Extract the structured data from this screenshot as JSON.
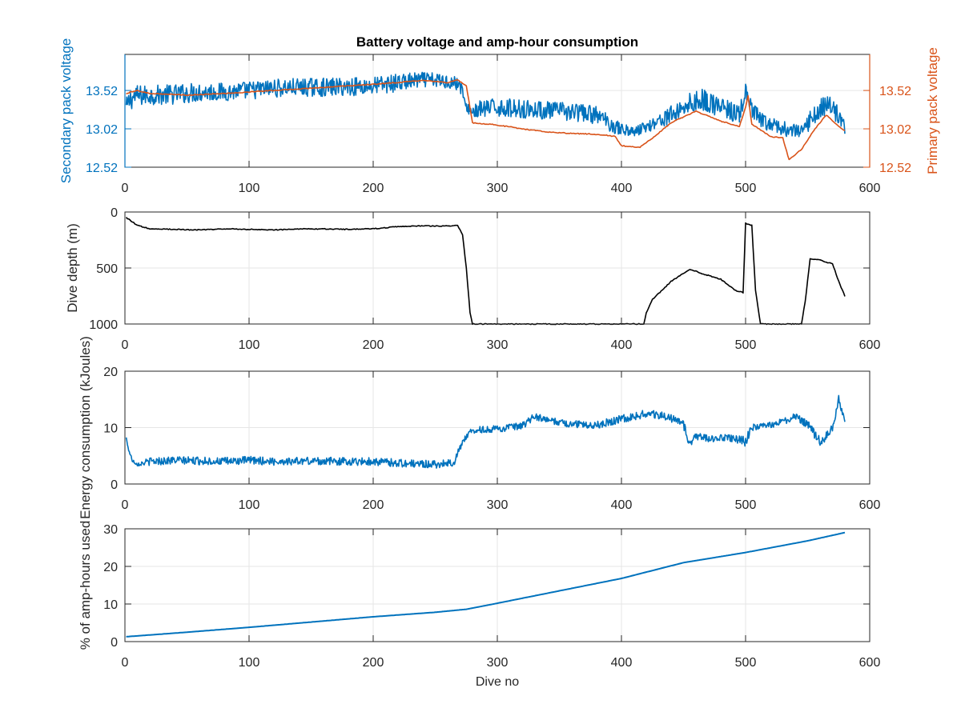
{
  "figure": {
    "title": "Battery voltage and amp-hour consumption",
    "colors": {
      "blue": "#0072bd",
      "orange": "#d95319",
      "black": "#000000",
      "grid": "#e6e6e6",
      "axis": "#262626"
    }
  },
  "chart_data": [
    {
      "type": "line",
      "title": "Battery voltage and amp-hour consumption",
      "xlabel": "",
      "ylabel": "Secondary pack voltage",
      "ylabel_right": "Primary pack voltage",
      "xlim": [
        0,
        600
      ],
      "ylim": [
        12.52,
        13.99
      ],
      "ylim_right": [
        12.52,
        13.99
      ],
      "xticks": [
        0,
        100,
        200,
        300,
        400,
        500,
        600
      ],
      "yticks": [
        12.52,
        13.02,
        13.52
      ],
      "yticks_right": [
        12.52,
        13.02,
        13.52
      ],
      "grid": true,
      "series": [
        {
          "axis": "left",
          "color": "#0072bd",
          "style": "noisy",
          "x": [
            1,
            5,
            10,
            20,
            40,
            60,
            80,
            100,
            120,
            140,
            160,
            180,
            200,
            220,
            240,
            260,
            270,
            275,
            280,
            290,
            300,
            320,
            340,
            360,
            380,
            395,
            400,
            410,
            420,
            440,
            455,
            465,
            480,
            495,
            500,
            505,
            515,
            530,
            545,
            555,
            565,
            575,
            580
          ],
          "y": [
            13.3,
            13.42,
            13.45,
            13.46,
            13.47,
            13.5,
            13.5,
            13.52,
            13.55,
            13.56,
            13.56,
            13.57,
            13.58,
            13.62,
            13.66,
            13.64,
            13.6,
            13.3,
            13.25,
            13.28,
            13.3,
            13.28,
            13.26,
            13.24,
            13.2,
            13.05,
            13.02,
            12.98,
            13.05,
            13.2,
            13.35,
            13.4,
            13.3,
            13.2,
            13.5,
            13.25,
            13.1,
            13.02,
            12.98,
            13.2,
            13.35,
            13.2,
            13.05
          ],
          "noise": [
            0.12,
            0.15,
            0.14,
            0.13,
            0.13,
            0.13,
            0.12,
            0.12,
            0.12,
            0.12,
            0.12,
            0.12,
            0.12,
            0.12,
            0.1,
            0.1,
            0.1,
            0.05,
            0.12,
            0.12,
            0.12,
            0.12,
            0.12,
            0.12,
            0.12,
            0.1,
            0.08,
            0.06,
            0.08,
            0.12,
            0.14,
            0.14,
            0.14,
            0.12,
            0.12,
            0.12,
            0.1,
            0.1,
            0.08,
            0.15,
            0.15,
            0.12,
            0.1
          ]
        },
        {
          "axis": "right",
          "color": "#d95319",
          "style": "smooth",
          "x": [
            1,
            5,
            10,
            20,
            50,
            80,
            100,
            150,
            200,
            240,
            260,
            268,
            275,
            280,
            300,
            320,
            340,
            360,
            380,
            395,
            400,
            415,
            425,
            440,
            460,
            480,
            495,
            500,
            502,
            505,
            520,
            530,
            535,
            545,
            555,
            565,
            575,
            580
          ],
          "y": [
            13.48,
            13.5,
            13.52,
            13.48,
            13.46,
            13.48,
            13.5,
            13.55,
            13.6,
            13.65,
            13.62,
            13.66,
            13.58,
            13.1,
            13.07,
            13.02,
            12.98,
            12.96,
            12.95,
            12.92,
            12.8,
            12.78,
            12.9,
            13.1,
            13.25,
            13.12,
            13.05,
            13.3,
            13.45,
            13.08,
            12.92,
            12.9,
            12.62,
            12.75,
            13.0,
            13.2,
            13.05,
            13.0
          ]
        }
      ]
    },
    {
      "type": "line",
      "xlabel": "",
      "ylabel": "Dive depth (m)",
      "xlim": [
        0,
        600
      ],
      "ylim": [
        0,
        1000
      ],
      "y_reversed": true,
      "xticks": [
        0,
        100,
        200,
        300,
        400,
        500,
        600
      ],
      "yticks": [
        0,
        500,
        1000
      ],
      "grid": true,
      "series": [
        {
          "color": "#000000",
          "style": "smooth",
          "x": [
            1,
            5,
            10,
            20,
            40,
            60,
            80,
            100,
            120,
            150,
            180,
            200,
            220,
            240,
            260,
            268,
            272,
            275,
            278,
            280,
            300,
            350,
            380,
            400,
            410,
            418,
            420,
            425,
            440,
            455,
            465,
            480,
            492,
            498,
            500,
            502,
            505,
            508,
            512,
            515,
            530,
            545,
            548,
            552,
            560,
            565,
            570,
            575,
            580
          ],
          "y": [
            50,
            80,
            120,
            150,
            155,
            160,
            150,
            155,
            160,
            150,
            155,
            150,
            130,
            125,
            125,
            120,
            200,
            500,
            900,
            1000,
            1000,
            1000,
            1000,
            1000,
            1000,
            1000,
            900,
            780,
            620,
            510,
            550,
            600,
            700,
            720,
            100,
            110,
            120,
            700,
            1000,
            1000,
            1000,
            1000,
            800,
            420,
            430,
            450,
            460,
            620,
            750
          ]
        }
      ]
    },
    {
      "type": "line",
      "xlabel": "",
      "ylabel": "Energy consumption (kJoules)",
      "xlim": [
        0,
        600
      ],
      "ylim": [
        0,
        20
      ],
      "xticks": [
        0,
        100,
        200,
        300,
        400,
        500,
        600
      ],
      "yticks": [
        0,
        10,
        20
      ],
      "grid": true,
      "series": [
        {
          "color": "#0072bd",
          "style": "noisy",
          "x": [
            1,
            3,
            6,
            10,
            20,
            40,
            60,
            80,
            100,
            120,
            150,
            180,
            200,
            230,
            250,
            265,
            270,
            275,
            280,
            300,
            320,
            330,
            340,
            360,
            380,
            400,
            420,
            440,
            450,
            455,
            460,
            470,
            480,
            490,
            500,
            505,
            520,
            530,
            540,
            550,
            560,
            565,
            570,
            575,
            580
          ],
          "y": [
            8.2,
            6.0,
            4.2,
            3.5,
            4.0,
            4.2,
            4.1,
            4.0,
            4.2,
            4.0,
            4.1,
            4.0,
            4.0,
            3.6,
            3.5,
            3.8,
            6.5,
            8.5,
            9.5,
            9.8,
            10.2,
            12.0,
            11.3,
            10.6,
            10.5,
            11.5,
            12.5,
            11.8,
            10.5,
            7.0,
            8.5,
            8.0,
            8.2,
            8.0,
            7.5,
            10.0,
            10.5,
            11.0,
            12.0,
            10.5,
            7.5,
            8.5,
            10.0,
            15.0,
            11.0
          ],
          "noise": [
            0.2,
            0.2,
            0.3,
            0.3,
            0.7,
            0.7,
            0.7,
            0.7,
            0.7,
            0.7,
            0.7,
            0.7,
            0.7,
            0.7,
            0.7,
            0.6,
            0.5,
            0.5,
            0.6,
            0.6,
            0.7,
            0.6,
            0.6,
            0.6,
            0.7,
            0.7,
            0.7,
            0.8,
            0.8,
            0.8,
            0.8,
            0.6,
            0.6,
            0.7,
            1.0,
            0.6,
            0.6,
            0.6,
            0.6,
            0.8,
            0.8,
            0.8,
            0.6,
            0.8,
            0.5
          ]
        }
      ]
    },
    {
      "type": "line",
      "xlabel": "Dive no",
      "ylabel": "% of amp-hours used",
      "xlim": [
        0,
        600
      ],
      "ylim": [
        0,
        30
      ],
      "xticks": [
        0,
        100,
        200,
        300,
        400,
        500,
        600
      ],
      "yticks": [
        0,
        10,
        20,
        30
      ],
      "grid": true,
      "series": [
        {
          "color": "#0072bd",
          "style": "smooth",
          "x": [
            1,
            50,
            100,
            150,
            200,
            250,
            275,
            300,
            350,
            400,
            450,
            500,
            550,
            580
          ],
          "y": [
            1.3,
            2.5,
            3.8,
            5.2,
            6.6,
            7.8,
            8.6,
            10.2,
            13.5,
            16.8,
            21.0,
            23.7,
            26.8,
            29.0
          ]
        }
      ]
    }
  ]
}
